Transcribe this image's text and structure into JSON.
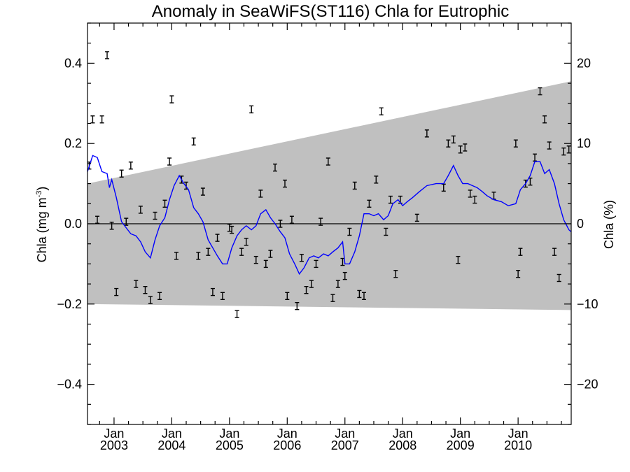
{
  "chart_data": {
    "type": "scatter",
    "title": "Anomaly in SeaWiFS(ST116) Chla for Eutrophic",
    "ylabel_left": "Chla (mg m",
    "ylabel_left_sup": "-3",
    "ylabel_left_close": ")",
    "ylabel_right": "Chla (%)",
    "ylim": [
      -0.5,
      0.5
    ],
    "ylim_right": [
      -25,
      25
    ],
    "xlim": [
      2002.54,
      2010.92
    ],
    "yticks": [
      {
        "v": 0.4,
        "label": "0.4"
      },
      {
        "v": 0.2,
        "label": "0.2"
      },
      {
        "v": 0.0,
        "label": "0.0"
      },
      {
        "v": -0.2,
        "label": "−0.2"
      },
      {
        "v": -0.4,
        "label": "−0.4"
      }
    ],
    "yticks_right": [
      {
        "v": 20,
        "label": "20"
      },
      {
        "v": 10,
        "label": "10"
      },
      {
        "v": 0,
        "label": "0"
      },
      {
        "v": -10,
        "label": "−10"
      },
      {
        "v": -20,
        "label": "−20"
      }
    ],
    "xticks": [
      {
        "v": 2003.0,
        "month": "Jan",
        "year": "2003"
      },
      {
        "v": 2004.0,
        "month": "Jan",
        "year": "2004"
      },
      {
        "v": 2005.0,
        "month": "Jan",
        "year": "2005"
      },
      {
        "v": 2006.0,
        "month": "Jan",
        "year": "2006"
      },
      {
        "v": 2007.0,
        "month": "Jan",
        "year": "2007"
      },
      {
        "v": 2008.0,
        "month": "Jan",
        "year": "2008"
      },
      {
        "v": 2009.0,
        "month": "Jan",
        "year": "2009"
      },
      {
        "v": 2010.0,
        "month": "Jan",
        "year": "2010"
      }
    ],
    "zero_line": 0,
    "band": {
      "color": "#c0c0c0",
      "upper": [
        [
          2002.54,
          0.1
        ],
        [
          2010.92,
          0.355
        ]
      ],
      "lower": [
        [
          2002.54,
          -0.2
        ],
        [
          2010.92,
          -0.215
        ]
      ]
    },
    "points_color": "#000000",
    "points": [
      [
        2002.57,
        0.145
      ],
      [
        2002.63,
        0.26
      ],
      [
        2002.71,
        0.01
      ],
      [
        2002.79,
        0.26
      ],
      [
        2002.88,
        0.42
      ],
      [
        2002.96,
        -0.005
      ],
      [
        2003.04,
        -0.17
      ],
      [
        2003.13,
        0.125
      ],
      [
        2003.21,
        0.005
      ],
      [
        2003.29,
        0.145
      ],
      [
        2003.38,
        -0.15
      ],
      [
        2003.46,
        0.035
      ],
      [
        2003.54,
        -0.165
      ],
      [
        2003.63,
        -0.19
      ],
      [
        2003.71,
        0.02
      ],
      [
        2003.79,
        -0.18
      ],
      [
        2003.88,
        0.05
      ],
      [
        2003.96,
        0.155
      ],
      [
        2004.0,
        0.31
      ],
      [
        2004.08,
        -0.08
      ],
      [
        2004.17,
        0.11
      ],
      [
        2004.25,
        0.095
      ],
      [
        2004.38,
        0.205
      ],
      [
        2004.46,
        -0.08
      ],
      [
        2004.54,
        0.08
      ],
      [
        2004.63,
        -0.07
      ],
      [
        2004.71,
        -0.17
      ],
      [
        2004.79,
        -0.035
      ],
      [
        2004.88,
        -0.18
      ],
      [
        2005.0,
        -0.01
      ],
      [
        2005.04,
        -0.015
      ],
      [
        2005.13,
        -0.225
      ],
      [
        2005.21,
        -0.07
      ],
      [
        2005.29,
        -0.045
      ],
      [
        2005.38,
        0.285
      ],
      [
        2005.46,
        -0.09
      ],
      [
        2005.54,
        0.075
      ],
      [
        2005.63,
        -0.1
      ],
      [
        2005.71,
        -0.075
      ],
      [
        2005.79,
        0.14
      ],
      [
        2005.88,
        0.0
      ],
      [
        2005.96,
        0.1
      ],
      [
        2006.0,
        -0.18
      ],
      [
        2006.08,
        0.01
      ],
      [
        2006.17,
        -0.205
      ],
      [
        2006.25,
        -0.085
      ],
      [
        2006.33,
        -0.165
      ],
      [
        2006.42,
        -0.15
      ],
      [
        2006.5,
        -0.1
      ],
      [
        2006.58,
        0.005
      ],
      [
        2006.71,
        0.155
      ],
      [
        2006.79,
        -0.185
      ],
      [
        2006.88,
        -0.15
      ],
      [
        2006.96,
        -0.095
      ],
      [
        2007.0,
        -0.13
      ],
      [
        2007.08,
        -0.02
      ],
      [
        2007.17,
        0.095
      ],
      [
        2007.25,
        -0.175
      ],
      [
        2007.33,
        -0.18
      ],
      [
        2007.42,
        0.05
      ],
      [
        2007.54,
        0.11
      ],
      [
        2007.63,
        0.28
      ],
      [
        2007.71,
        -0.02
      ],
      [
        2007.79,
        0.06
      ],
      [
        2007.88,
        -0.125
      ],
      [
        2007.96,
        0.06
      ],
      [
        2008.25,
        0.015
      ],
      [
        2008.42,
        0.225
      ],
      [
        2008.71,
        0.09
      ],
      [
        2008.79,
        0.2
      ],
      [
        2008.88,
        0.21
      ],
      [
        2008.96,
        -0.09
      ],
      [
        2009.0,
        0.185
      ],
      [
        2009.08,
        0.19
      ],
      [
        2009.17,
        0.075
      ],
      [
        2009.25,
        0.06
      ],
      [
        2009.58,
        0.07
      ],
      [
        2009.96,
        0.2
      ],
      [
        2010.0,
        -0.125
      ],
      [
        2010.04,
        -0.07
      ],
      [
        2010.13,
        0.1
      ],
      [
        2010.21,
        0.105
      ],
      [
        2010.29,
        0.165
      ],
      [
        2010.38,
        0.33
      ],
      [
        2010.46,
        0.26
      ],
      [
        2010.54,
        0.195
      ],
      [
        2010.63,
        -0.07
      ],
      [
        2010.71,
        -0.135
      ],
      [
        2010.79,
        0.18
      ],
      [
        2010.88,
        0.185
      ]
    ],
    "line_color": "#0000ff",
    "line": [
      [
        2002.54,
        0.13
      ],
      [
        2002.63,
        0.17
      ],
      [
        2002.71,
        0.165
      ],
      [
        2002.79,
        0.13
      ],
      [
        2002.88,
        0.125
      ],
      [
        2002.92,
        0.09
      ],
      [
        2002.96,
        0.11
      ],
      [
        2003.04,
        0.065
      ],
      [
        2003.13,
        0.005
      ],
      [
        2003.21,
        -0.01
      ],
      [
        2003.29,
        -0.025
      ],
      [
        2003.38,
        -0.03
      ],
      [
        2003.46,
        -0.045
      ],
      [
        2003.54,
        -0.07
      ],
      [
        2003.63,
        -0.085
      ],
      [
        2003.71,
        -0.04
      ],
      [
        2003.79,
        -0.005
      ],
      [
        2003.88,
        0.015
      ],
      [
        2003.96,
        0.06
      ],
      [
        2004.04,
        0.095
      ],
      [
        2004.13,
        0.12
      ],
      [
        2004.21,
        0.1
      ],
      [
        2004.29,
        0.085
      ],
      [
        2004.38,
        0.04
      ],
      [
        2004.46,
        0.025
      ],
      [
        2004.54,
        0.005
      ],
      [
        2004.63,
        -0.04
      ],
      [
        2004.71,
        -0.06
      ],
      [
        2004.79,
        -0.08
      ],
      [
        2004.88,
        -0.1
      ],
      [
        2004.96,
        -0.1
      ],
      [
        2005.04,
        -0.06
      ],
      [
        2005.13,
        -0.03
      ],
      [
        2005.21,
        -0.015
      ],
      [
        2005.29,
        -0.005
      ],
      [
        2005.38,
        -0.015
      ],
      [
        2005.46,
        -0.005
      ],
      [
        2005.54,
        0.025
      ],
      [
        2005.63,
        0.035
      ],
      [
        2005.71,
        0.015
      ],
      [
        2005.79,
        0.0
      ],
      [
        2005.88,
        -0.02
      ],
      [
        2005.96,
        -0.035
      ],
      [
        2006.04,
        -0.075
      ],
      [
        2006.13,
        -0.1
      ],
      [
        2006.21,
        -0.125
      ],
      [
        2006.29,
        -0.11
      ],
      [
        2006.38,
        -0.085
      ],
      [
        2006.46,
        -0.08
      ],
      [
        2006.54,
        -0.085
      ],
      [
        2006.63,
        -0.075
      ],
      [
        2006.71,
        -0.08
      ],
      [
        2006.79,
        -0.07
      ],
      [
        2006.88,
        -0.06
      ],
      [
        2006.96,
        -0.045
      ],
      [
        2007.0,
        -0.1
      ],
      [
        2007.08,
        -0.1
      ],
      [
        2007.17,
        -0.07
      ],
      [
        2007.25,
        -0.03
      ],
      [
        2007.33,
        0.025
      ],
      [
        2007.42,
        0.025
      ],
      [
        2007.5,
        0.02
      ],
      [
        2007.58,
        0.025
      ],
      [
        2007.67,
        0.01
      ],
      [
        2007.75,
        0.02
      ],
      [
        2007.83,
        0.05
      ],
      [
        2007.92,
        0.06
      ],
      [
        2008.0,
        0.045
      ],
      [
        2008.08,
        0.055
      ],
      [
        2008.17,
        0.065
      ],
      [
        2008.29,
        0.08
      ],
      [
        2008.42,
        0.095
      ],
      [
        2008.58,
        0.1
      ],
      [
        2008.71,
        0.1
      ],
      [
        2008.79,
        0.12
      ],
      [
        2008.88,
        0.145
      ],
      [
        2008.96,
        0.12
      ],
      [
        2009.04,
        0.1
      ],
      [
        2009.13,
        0.1
      ],
      [
        2009.21,
        0.095
      ],
      [
        2009.29,
        0.09
      ],
      [
        2009.38,
        0.08
      ],
      [
        2009.46,
        0.07
      ],
      [
        2009.58,
        0.06
      ],
      [
        2009.71,
        0.055
      ],
      [
        2009.83,
        0.045
      ],
      [
        2009.96,
        0.05
      ],
      [
        2010.04,
        0.085
      ],
      [
        2010.13,
        0.1
      ],
      [
        2010.21,
        0.12
      ],
      [
        2010.29,
        0.155
      ],
      [
        2010.38,
        0.155
      ],
      [
        2010.46,
        0.125
      ],
      [
        2010.54,
        0.135
      ],
      [
        2010.63,
        0.1
      ],
      [
        2010.71,
        0.05
      ],
      [
        2010.79,
        0.01
      ],
      [
        2010.88,
        -0.015
      ],
      [
        2010.92,
        -0.02
      ]
    ]
  }
}
